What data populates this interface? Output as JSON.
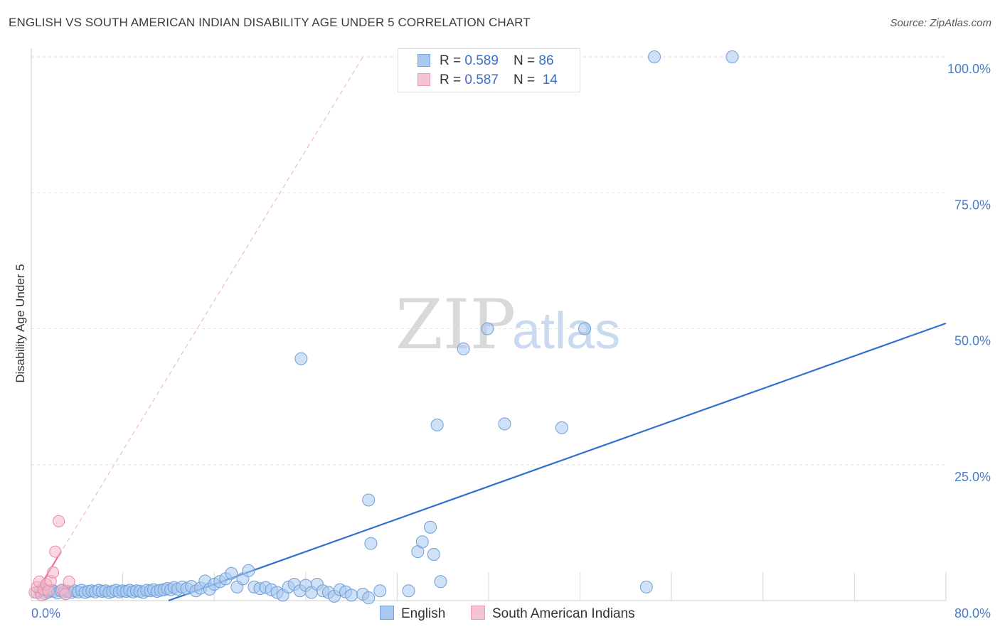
{
  "header": {
    "title": "ENGLISH VS SOUTH AMERICAN INDIAN DISABILITY AGE UNDER 5 CORRELATION CHART",
    "source": "Source: ZipAtlas.com"
  },
  "watermark": {
    "zip": "ZIP",
    "atlas": "atlas"
  },
  "legend_box": {
    "rows": [
      {
        "r_label": "R = ",
        "r_value": "0.589",
        "n_label": "N = ",
        "n_value": "86",
        "color": "#a8c8f0"
      },
      {
        "r_label": "R = ",
        "r_value": "0.587",
        "n_label": "N = ",
        "n_value": "14",
        "color": "#f5b8c8"
      }
    ]
  },
  "bottom_legend": {
    "items": [
      {
        "label": "English",
        "color": "#a8c8f0"
      },
      {
        "label": "South American Indians",
        "color": "#f5b8c8"
      }
    ]
  },
  "chart_data": {
    "type": "scatter",
    "title": "ENGLISH VS SOUTH AMERICAN INDIAN DISABILITY AGE UNDER 5 CORRELATION CHART",
    "xlabel": "",
    "ylabel": "Disability Age Under 5",
    "xlim": [
      0,
      80
    ],
    "ylim": [
      0,
      100
    ],
    "x_tick_labels": [
      "0.0%",
      "80.0%"
    ],
    "y_ticks": [
      25,
      50,
      75,
      100
    ],
    "y_tick_labels": [
      "25.0%",
      "50.0%",
      "75.0%",
      "100.0%"
    ],
    "grid": true,
    "legend": "top-center",
    "colors": {
      "english": "#a8c8f0",
      "english_line": "#2f6fce",
      "sai": "#f5b8c8",
      "sai_line": "#e8709a"
    },
    "series": [
      {
        "name": "English",
        "points": [
          [
            0.5,
            1.5
          ],
          [
            0.8,
            1.8
          ],
          [
            1.0,
            2.2
          ],
          [
            1.2,
            1.3
          ],
          [
            1.5,
            1.6
          ],
          [
            1.8,
            1.9
          ],
          [
            2.0,
            1.7
          ],
          [
            2.3,
            1.4
          ],
          [
            2.6,
            1.8
          ],
          [
            2.9,
            1.6
          ],
          [
            3.2,
            1.7
          ],
          [
            3.5,
            1.5
          ],
          [
            3.8,
            1.8
          ],
          [
            4.1,
            1.6
          ],
          [
            4.4,
            1.9
          ],
          [
            4.7,
            1.5
          ],
          [
            5.0,
            1.7
          ],
          [
            5.3,
            1.8
          ],
          [
            5.6,
            1.6
          ],
          [
            5.9,
            1.9
          ],
          [
            6.2,
            1.7
          ],
          [
            6.5,
            1.8
          ],
          [
            6.8,
            1.5
          ],
          [
            7.1,
            1.7
          ],
          [
            7.4,
            1.9
          ],
          [
            7.7,
            1.6
          ],
          [
            8.0,
            1.8
          ],
          [
            8.3,
            1.7
          ],
          [
            8.6,
            1.9
          ],
          [
            8.9,
            1.6
          ],
          [
            9.2,
            1.8
          ],
          [
            9.5,
            1.7
          ],
          [
            9.8,
            1.5
          ],
          [
            10.1,
            1.9
          ],
          [
            10.4,
            1.8
          ],
          [
            10.7,
            2.0
          ],
          [
            11.0,
            1.7
          ],
          [
            11.3,
            1.9
          ],
          [
            11.6,
            2.0
          ],
          [
            11.9,
            2.2
          ],
          [
            12.2,
            2.0
          ],
          [
            12.5,
            2.4
          ],
          [
            12.8,
            2.1
          ],
          [
            13.2,
            2.5
          ],
          [
            13.6,
            2.2
          ],
          [
            14.0,
            2.6
          ],
          [
            14.4,
            1.8
          ],
          [
            14.8,
            2.3
          ],
          [
            15.2,
            3.6
          ],
          [
            15.6,
            2.1
          ],
          [
            16.0,
            3.0
          ],
          [
            16.5,
            3.5
          ],
          [
            17.0,
            4.0
          ],
          [
            17.5,
            5.0
          ],
          [
            18.0,
            2.5
          ],
          [
            18.5,
            4.0
          ],
          [
            19.0,
            5.5
          ],
          [
            19.5,
            2.5
          ],
          [
            20.0,
            2.2
          ],
          [
            20.5,
            2.4
          ],
          [
            21.0,
            2.0
          ],
          [
            21.5,
            1.5
          ],
          [
            22.0,
            1.0
          ],
          [
            22.5,
            2.5
          ],
          [
            23.0,
            3.0
          ],
          [
            23.5,
            1.8
          ],
          [
            24.0,
            2.8
          ],
          [
            24.5,
            1.5
          ],
          [
            25.0,
            3.0
          ],
          [
            25.5,
            1.8
          ],
          [
            26.0,
            1.5
          ],
          [
            26.5,
            0.8
          ],
          [
            27.0,
            2.0
          ],
          [
            27.5,
            1.6
          ],
          [
            28.0,
            1.0
          ],
          [
            29.0,
            1.2
          ],
          [
            29.5,
            0.5
          ],
          [
            30.5,
            1.8
          ],
          [
            29.7,
            10.5
          ],
          [
            33.8,
            9.0
          ],
          [
            34.2,
            10.8
          ],
          [
            34.9,
            13.5
          ],
          [
            35.2,
            8.5
          ],
          [
            35.8,
            3.5
          ],
          [
            33.0,
            1.8
          ],
          [
            35.5,
            32.3
          ]
        ]
      },
      {
        "name": "South American Indians",
        "points": [
          [
            0.3,
            1.5
          ],
          [
            0.5,
            2.5
          ],
          [
            0.7,
            3.5
          ],
          [
            0.9,
            1.0
          ],
          [
            1.1,
            2.0
          ],
          [
            1.3,
            3.0
          ],
          [
            1.5,
            1.8
          ],
          [
            1.7,
            3.6
          ],
          [
            1.9,
            5.2
          ],
          [
            2.1,
            9.0
          ],
          [
            2.4,
            14.6
          ],
          [
            2.7,
            2.0
          ],
          [
            3.0,
            1.2
          ],
          [
            3.3,
            3.5
          ]
        ]
      }
    ],
    "english_high_points": [
      [
        23.6,
        44.5
      ],
      [
        29.5,
        18.5
      ],
      [
        37.8,
        46.3
      ],
      [
        39.9,
        50.0
      ],
      [
        41.4,
        32.5
      ],
      [
        46.4,
        31.8
      ],
      [
        48.4,
        50.0
      ],
      [
        54.5,
        100.0
      ],
      [
        61.3,
        100.0
      ],
      [
        53.8,
        2.5
      ]
    ],
    "trendlines": [
      {
        "series": "English",
        "from": [
          12.0,
          0.0
        ],
        "to": [
          80.0,
          51.0
        ],
        "style": "solid"
      },
      {
        "series": "South American Indians",
        "from": [
          0.3,
          1.0
        ],
        "to": [
          2.6,
          9.0
        ],
        "style": "solid"
      },
      {
        "series": "South American Indians",
        "from": [
          0.3,
          1.0
        ],
        "to": [
          29.0,
          100.0
        ],
        "style": "dashed"
      }
    ]
  }
}
